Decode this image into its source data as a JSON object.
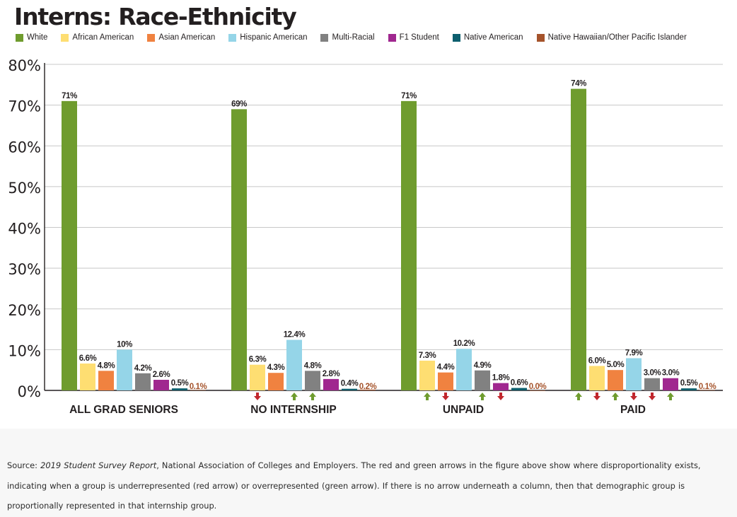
{
  "title": "Interns: Race-Ethnicity",
  "legend": [
    {
      "label": "White",
      "color": "#6f9c2e"
    },
    {
      "label": "African American",
      "color": "#fede72"
    },
    {
      "label": "Asian American",
      "color": "#f08240"
    },
    {
      "label": "Hispanic American",
      "color": "#95d5e8"
    },
    {
      "label": "Multi-Racial",
      "color": "#818181"
    },
    {
      "label": "F1 Student",
      "color": "#a0278f"
    },
    {
      "label": "Native American",
      "color": "#0d5f6e"
    },
    {
      "label": "Native Hawaiian/Other Pacific Islander",
      "color": "#a5532b"
    }
  ],
  "arrow_colors": {
    "up": "#6f9c2e",
    "down": "#c1272d"
  },
  "chart_data": {
    "type": "bar",
    "categories": [
      "ALL GRAD SENIORS",
      "NO INTERNSHIP",
      "UNPAID",
      "PAID"
    ],
    "ylim": [
      0,
      80
    ],
    "yticks": [
      0,
      10,
      20,
      30,
      40,
      50,
      60,
      70,
      80
    ],
    "ytick_labels": [
      "0%",
      "10%",
      "20%",
      "30%",
      "40%",
      "50%",
      "60%",
      "70%",
      "80%"
    ],
    "grid": true,
    "legend_position": "top",
    "series": [
      {
        "name": "White",
        "values": [
          71,
          69,
          71,
          74
        ],
        "labels": [
          "71%",
          "69%",
          "71%",
          "74%"
        ],
        "arrows": [
          "",
          "",
          "",
          "up"
        ]
      },
      {
        "name": "African American",
        "values": [
          6.6,
          6.3,
          7.3,
          6.0
        ],
        "labels": [
          "6.6%",
          "6.3%",
          "7.3%",
          "6.0%"
        ],
        "arrows": [
          "",
          "down",
          "up",
          "down"
        ]
      },
      {
        "name": "Asian American",
        "values": [
          4.8,
          4.3,
          4.4,
          5.0
        ],
        "labels": [
          "4.8%",
          "4.3%",
          "4.4%",
          "5.0%"
        ],
        "arrows": [
          "",
          "",
          "down",
          "up"
        ]
      },
      {
        "name": "Hispanic American",
        "values": [
          10,
          12.4,
          10.2,
          7.9
        ],
        "labels": [
          "10%",
          "12.4%",
          "10.2%",
          "7.9%"
        ],
        "arrows": [
          "",
          "up",
          "",
          "down"
        ]
      },
      {
        "name": "Multi-Racial",
        "values": [
          4.2,
          4.8,
          4.9,
          3.0
        ],
        "labels": [
          "4.2%",
          "4.8%",
          "4.9%",
          "3.0%"
        ],
        "arrows": [
          "",
          "up",
          "up",
          "down"
        ]
      },
      {
        "name": "F1 Student",
        "values": [
          2.6,
          2.8,
          1.8,
          3.0
        ],
        "labels": [
          "2.6%",
          "2.8%",
          "1.8%",
          "3.0%"
        ],
        "arrows": [
          "",
          "",
          "down",
          "up"
        ]
      },
      {
        "name": "Native American",
        "values": [
          0.5,
          0.4,
          0.6,
          0.5
        ],
        "labels": [
          "0.5%",
          "0.4%",
          "0.6%",
          "0.5%"
        ],
        "arrows": [
          "",
          "",
          "",
          ""
        ]
      },
      {
        "name": "Native Hawaiian/Other Pacific Islander",
        "values": [
          0.1,
          0.2,
          0.0,
          0.1
        ],
        "labels": [
          "0.1%",
          "0.2%",
          "0.0%",
          "0.1%"
        ],
        "arrows": [
          "",
          "",
          "",
          ""
        ]
      }
    ]
  },
  "source": {
    "prefix": "Source: ",
    "report": "2019 Student Survey Report",
    "rest": ", National Association of Colleges and Employers. The red and green arrows in the figure above show where disproportionality exists, indicating when a group is underrepresented (red arrow) or overrepresented (green arrow). If there is no arrow underneath a column, then that demographic group is proportionally represented in that internship group."
  }
}
